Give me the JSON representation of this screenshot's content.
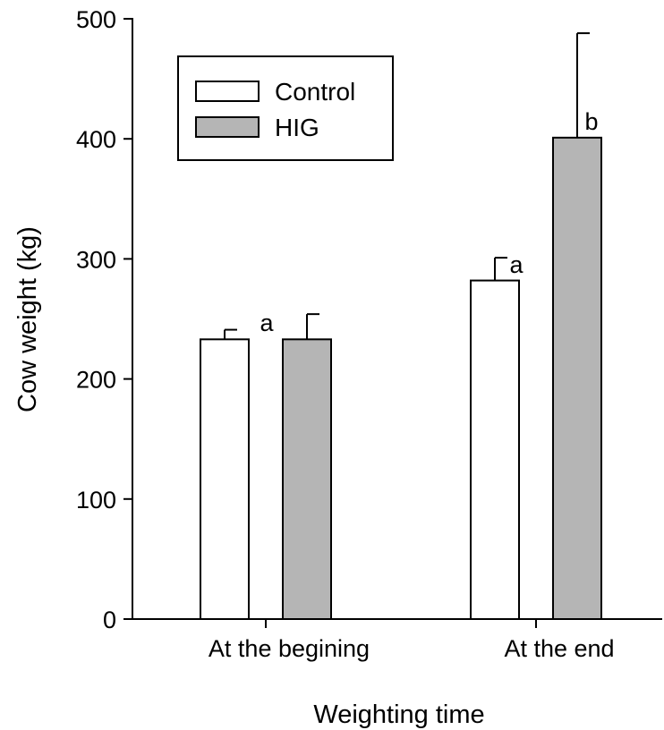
{
  "chart_data": {
    "type": "bar",
    "xlabel": "Weighting time",
    "ylabel": "Cow weight (kg)",
    "ylim": [
      0,
      500
    ],
    "yticks": [
      0,
      100,
      200,
      300,
      400,
      500
    ],
    "categories": [
      "At the begining",
      "At the end"
    ],
    "series": [
      {
        "name": "Control",
        "color": "#ffffff",
        "values": [
          233,
          282
        ],
        "errors": [
          8,
          19
        ]
      },
      {
        "name": "HIG",
        "color": "#b5b5b5",
        "values": [
          233,
          401
        ],
        "errors": [
          21,
          87
        ]
      }
    ],
    "annotations": [
      {
        "category": "At the begining",
        "text": "a"
      },
      {
        "category": "At the end",
        "series": "Control",
        "text": "a"
      },
      {
        "category": "At the end",
        "series": "HIG",
        "text": "b"
      }
    ],
    "legend": {
      "position": "top-left",
      "entries": [
        "Control",
        "HIG"
      ]
    },
    "grid": false
  }
}
